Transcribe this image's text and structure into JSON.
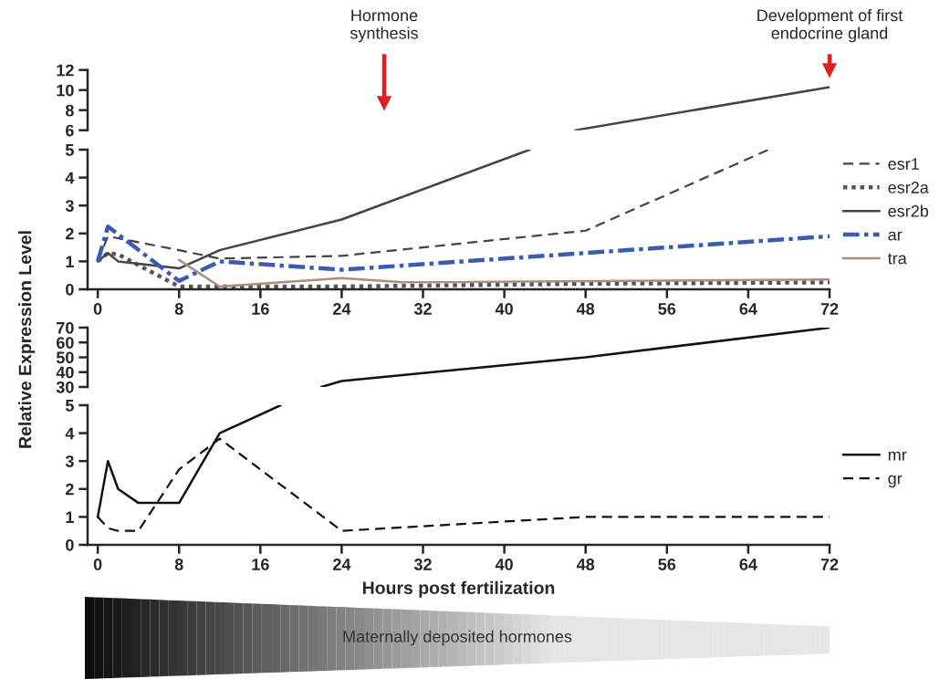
{
  "chart_data": [
    {
      "type": "line",
      "xlim": [
        -1,
        72
      ],
      "xticks": [
        0,
        8,
        16,
        24,
        32,
        40,
        48,
        56,
        64,
        72
      ],
      "ylim": [
        6,
        12
      ],
      "yticks": [
        6,
        8,
        10,
        12
      ],
      "tick_labels": "y",
      "grid": false,
      "legend": false,
      "annotations": [
        "Hormone\nsynthesis",
        "Development of first\nendocrine gland"
      ],
      "series": [
        {
          "color": "#444444",
          "line_style": "solid",
          "x": [
            47,
            72
          ],
          "values": [
            6,
            10.3
          ]
        }
      ]
    },
    {
      "type": "line",
      "xlim": [
        -1,
        72
      ],
      "xticks": [
        0,
        8,
        16,
        24,
        32,
        40,
        48,
        56,
        64,
        72
      ],
      "ylim": [
        0,
        5
      ],
      "yticks": [
        0,
        1,
        2,
        3,
        4,
        5
      ],
      "grid": false,
      "legend": "right",
      "ylabel": "Relative Expression Level",
      "series": [
        {
          "name": "esr1",
          "color": "#444444",
          "line_style": "dashed",
          "x": [
            0,
            1,
            8,
            12,
            24,
            48,
            66
          ],
          "values": [
            1.0,
            1.9,
            1.4,
            1.1,
            1.2,
            2.1,
            5
          ]
        },
        {
          "name": "esr2a",
          "color": "#555555",
          "line_style": "dotted",
          "x": [
            0,
            1,
            2,
            8,
            12,
            24,
            48,
            72
          ],
          "values": [
            1.0,
            1.3,
            1.25,
            0.1,
            0.1,
            0.1,
            0.2,
            0.25
          ]
        },
        {
          "name": "esr2b",
          "color": "#444444",
          "line_style": "solid",
          "x": [
            0,
            1,
            2,
            8,
            12,
            24,
            42.5
          ],
          "values": [
            1.0,
            1.3,
            1.0,
            0.75,
            1.4,
            2.5,
            5
          ]
        },
        {
          "name": "ar",
          "color": "#3a5bb0",
          "line_style": "dashdot",
          "x": [
            0,
            1,
            8,
            12,
            24,
            48,
            72
          ],
          "values": [
            1.0,
            2.25,
            0.3,
            1.0,
            0.7,
            1.3,
            1.9
          ]
        },
        {
          "name": "tra",
          "color": "#a89080",
          "line_style": "solid",
          "x": [
            8,
            12,
            24,
            30,
            72
          ],
          "values": [
            1.05,
            0.1,
            0.4,
            0.25,
            0.35
          ]
        }
      ]
    },
    {
      "type": "line",
      "xlim": [
        -1,
        72
      ],
      "xticks": [
        0,
        8,
        16,
        24,
        32,
        40,
        48,
        56,
        64,
        72
      ],
      "ylim": [
        30,
        70
      ],
      "yticks": [
        30,
        40,
        50,
        60,
        70
      ],
      "tick_labels": "y",
      "grid": false,
      "legend": false,
      "series": [
        {
          "color": "#111111",
          "line_style": "solid",
          "x": [
            22,
            24,
            48,
            72
          ],
          "values": [
            30,
            34,
            50,
            70
          ]
        }
      ]
    },
    {
      "type": "line",
      "xlim": [
        -1,
        72
      ],
      "xticks": [
        0,
        8,
        16,
        24,
        32,
        40,
        48,
        56,
        64,
        72
      ],
      "ylim": [
        0,
        5
      ],
      "yticks": [
        0,
        1,
        2,
        3,
        4,
        5
      ],
      "grid": false,
      "legend": "right",
      "xlabel": "Hours post fertilization",
      "annotations": [
        "Maternally deposited hormones"
      ],
      "series": [
        {
          "name": "mr",
          "color": "#111111",
          "line_style": "solid",
          "x": [
            0,
            1,
            2,
            4,
            8,
            12,
            18
          ],
          "values": [
            1.0,
            3.0,
            2.0,
            1.5,
            1.5,
            4.0,
            5
          ]
        },
        {
          "name": "gr",
          "color": "#111111",
          "line_style": "dashed",
          "x": [
            0,
            1,
            2,
            4,
            8,
            12,
            24,
            48,
            72
          ],
          "values": [
            1.0,
            0.6,
            0.5,
            0.5,
            2.7,
            3.8,
            0.5,
            1.0,
            1.0
          ]
        }
      ]
    }
  ]
}
